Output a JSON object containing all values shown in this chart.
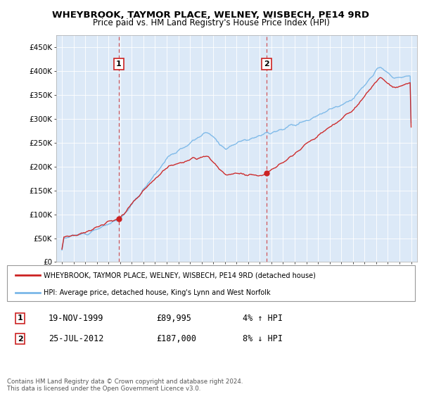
{
  "title": "WHEYBROOK, TAYMOR PLACE, WELNEY, WISBECH, PE14 9RD",
  "subtitle": "Price paid vs. HM Land Registry's House Price Index (HPI)",
  "legend_label_red": "WHEYBROOK, TAYMOR PLACE, WELNEY, WISBECH, PE14 9RD (detached house)",
  "legend_label_blue": "HPI: Average price, detached house, King's Lynn and West Norfolk",
  "sale1_date": "19-NOV-1999",
  "sale1_price": "£89,995",
  "sale1_hpi": "4% ↑ HPI",
  "sale2_date": "25-JUL-2012",
  "sale2_price": "£187,000",
  "sale2_hpi": "8% ↓ HPI",
  "footer": "Contains HM Land Registry data © Crown copyright and database right 2024.\nThis data is licensed under the Open Government Licence v3.0.",
  "ylim": [
    0,
    475000
  ],
  "yticks": [
    0,
    50000,
    100000,
    150000,
    200000,
    250000,
    300000,
    350000,
    400000,
    450000
  ],
  "ytick_labels": [
    "£0",
    "£50K",
    "£100K",
    "£150K",
    "£200K",
    "£250K",
    "£300K",
    "£350K",
    "£400K",
    "£450K"
  ],
  "plot_bg_color": "#dce9f7",
  "sale1_year": 1999.88,
  "sale1_value": 89995,
  "sale2_year": 2012.56,
  "sale2_value": 187000,
  "xmin": 1995,
  "xmax": 2025
}
